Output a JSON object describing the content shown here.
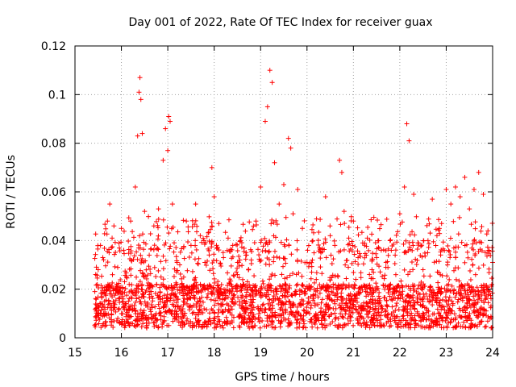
{
  "chart_data": {
    "type": "scatter",
    "title": "Day 001 of 2022, Rate Of TEC Index for receiver guax",
    "xlabel": "GPS time / hours",
    "ylabel": "ROTI / TECUs",
    "xlim": [
      15,
      24
    ],
    "ylim": [
      0,
      0.12
    ],
    "xticks": [
      "15",
      "16",
      "17",
      "18",
      "19",
      "20",
      "21",
      "22",
      "23",
      "24"
    ],
    "yticks": [
      "0",
      "0.02",
      "0.04",
      "0.06",
      "0.08",
      "0.1",
      "0.12"
    ],
    "grid": true,
    "marker": "plus",
    "color": "#ff0000",
    "series": [
      {
        "x": [
          15.45,
          15.5,
          15.55,
          15.6,
          15.65,
          15.7,
          15.75,
          15.8,
          15.9,
          16.0,
          16.05,
          16.1,
          16.2,
          16.3,
          16.35,
          16.38,
          16.4,
          16.42,
          16.45,
          16.5,
          16.6,
          16.7,
          16.8,
          16.9,
          16.95,
          17.0,
          17.02,
          17.05,
          17.1,
          17.2,
          17.3,
          17.4,
          17.5,
          17.6,
          17.7,
          17.8,
          17.95,
          18.0,
          18.1,
          18.2,
          18.3,
          18.4,
          18.5,
          18.6,
          18.7,
          18.8,
          18.9,
          19.0,
          19.1,
          19.15,
          19.2,
          19.25,
          19.3,
          19.4,
          19.5,
          19.6,
          19.65,
          19.7,
          19.8,
          19.9,
          20.0,
          20.1,
          20.2,
          20.3,
          20.4,
          20.5,
          20.6,
          20.7,
          20.75,
          20.8,
          20.9,
          21.0,
          21.1,
          21.2,
          21.3,
          21.4,
          21.5,
          21.6,
          21.7,
          21.8,
          21.9,
          22.0,
          22.1,
          22.15,
          22.2,
          22.3,
          22.4,
          22.5,
          22.6,
          22.7,
          22.8,
          22.9,
          23.0,
          23.1,
          23.2,
          23.3,
          23.4,
          23.5,
          23.6,
          23.7,
          23.8,
          23.9,
          24.0
        ],
        "y": [
          0.012,
          0.028,
          0.038,
          0.033,
          0.018,
          0.048,
          0.055,
          0.041,
          0.022,
          0.045,
          0.036,
          0.014,
          0.048,
          0.062,
          0.083,
          0.101,
          0.107,
          0.098,
          0.084,
          0.052,
          0.034,
          0.046,
          0.053,
          0.073,
          0.086,
          0.077,
          0.091,
          0.089,
          0.055,
          0.031,
          0.022,
          0.048,
          0.038,
          0.055,
          0.042,
          0.031,
          0.07,
          0.058,
          0.047,
          0.033,
          0.041,
          0.038,
          0.026,
          0.021,
          0.017,
          0.032,
          0.048,
          0.062,
          0.089,
          0.095,
          0.11,
          0.105,
          0.072,
          0.055,
          0.063,
          0.082,
          0.078,
          0.051,
          0.061,
          0.045,
          0.031,
          0.027,
          0.024,
          0.035,
          0.058,
          0.042,
          0.038,
          0.073,
          0.068,
          0.052,
          0.041,
          0.048,
          0.033,
          0.039,
          0.041,
          0.028,
          0.033,
          0.036,
          0.029,
          0.022,
          0.034,
          0.051,
          0.062,
          0.088,
          0.081,
          0.059,
          0.039,
          0.028,
          0.035,
          0.057,
          0.042,
          0.047,
          0.061,
          0.055,
          0.062,
          0.058,
          0.066,
          0.053,
          0.061,
          0.068,
          0.059,
          0.044,
          0.031
        ]
      }
    ]
  }
}
